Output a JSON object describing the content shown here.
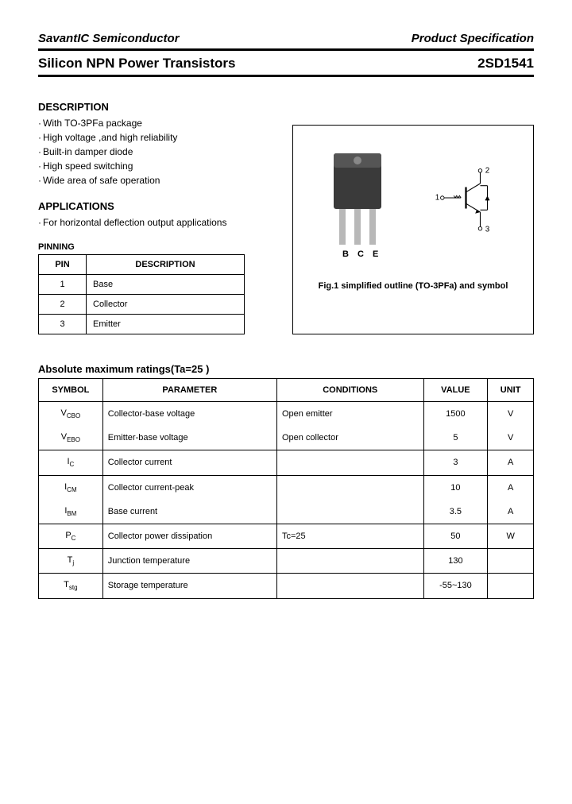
{
  "header": {
    "company": "SavantIC Semiconductor",
    "doctype": "Product Specification",
    "title": "Silicon NPN Power Transistors",
    "partno": "2SD1541"
  },
  "description": {
    "heading": "DESCRIPTION",
    "items": [
      "With TO-3PFa package",
      "High voltage ,and high reliability",
      "Built-in damper diode",
      "High speed switching",
      "Wide area of safe operation"
    ]
  },
  "applications": {
    "heading": "APPLICATIONS",
    "items": [
      "For horizontal deflection output applications"
    ]
  },
  "pinning": {
    "label": "PINNING",
    "col_pin": "PIN",
    "col_desc": "DESCRIPTION",
    "rows": [
      {
        "pin": "1",
        "desc": "Base"
      },
      {
        "pin": "2",
        "desc": "Collector"
      },
      {
        "pin": "3",
        "desc": "Emitter"
      }
    ]
  },
  "figure": {
    "caption": "Fig.1 simplified outline (TO-3PFa) and symbol",
    "pin_labels": {
      "b": "B",
      "c": "C",
      "e": "E"
    },
    "symbol_pins": {
      "p1": "1",
      "p2": "2",
      "p3": "3"
    },
    "package_color": "#3a3a3a",
    "lead_color": "#b8b8b8"
  },
  "ratings": {
    "label": "Absolute maximum ratings(Ta=25 )",
    "columns": {
      "symbol": "SYMBOL",
      "parameter": "PARAMETER",
      "conditions": "CONDITIONS",
      "value": "VALUE",
      "unit": "UNIT"
    },
    "rows": [
      {
        "sym": "V",
        "sub": "CBO",
        "param": "Collector-base voltage",
        "cond": "Open emitter",
        "val": "1500",
        "unit": "V",
        "group": "a",
        "pos": "top"
      },
      {
        "sym": "V",
        "sub": "EBO",
        "param": "Emitter-base voltage",
        "cond": "Open collector",
        "val": "5",
        "unit": "V",
        "group": "a",
        "pos": "bot"
      },
      {
        "sym": "I",
        "sub": "C",
        "param": "Collector current",
        "cond": "",
        "val": "3",
        "unit": "A",
        "group": "b",
        "pos": "solo"
      },
      {
        "sym": "I",
        "sub": "CM",
        "param": "Collector current-peak",
        "cond": "",
        "val": "10",
        "unit": "A",
        "group": "c",
        "pos": "top"
      },
      {
        "sym": "I",
        "sub": "BM",
        "param": "Base current",
        "cond": "",
        "val": "3.5",
        "unit": "A",
        "group": "c",
        "pos": "bot"
      },
      {
        "sym": "P",
        "sub": "C",
        "param": "Collector power dissipation",
        "cond": "Tc=25",
        "val": "50",
        "unit": "W",
        "group": "d",
        "pos": "solo"
      },
      {
        "sym": "T",
        "sub": "j",
        "param": "Junction temperature",
        "cond": "",
        "val": "130",
        "unit": "",
        "group": "e",
        "pos": "solo"
      },
      {
        "sym": "T",
        "sub": "stg",
        "param": "Storage temperature",
        "cond": "",
        "val": "-55~130",
        "unit": "",
        "group": "f",
        "pos": "solo"
      }
    ]
  }
}
